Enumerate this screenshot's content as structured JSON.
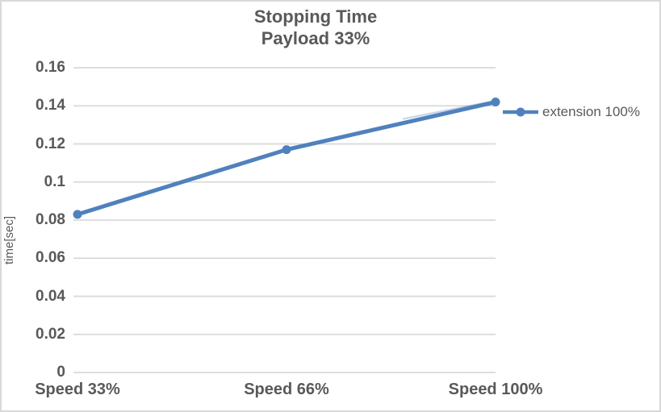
{
  "chart": {
    "title_line1": "Stopping Time",
    "title_line2": "Payload 33%",
    "ylabel": "time[sec]",
    "legend_label": "extension 100%"
  },
  "chart_data": {
    "type": "line",
    "title": "Stopping Time",
    "subtitle": "Payload 33%",
    "xlabel": "",
    "ylabel": "time[sec]",
    "categories": [
      "Speed 33%",
      "Speed 66%",
      "Speed 100%"
    ],
    "series": [
      {
        "name": "extension 100%",
        "color": "#4F81BD",
        "values": [
          0.083,
          0.117,
          0.142
        ]
      }
    ],
    "ylim": [
      0,
      0.16
    ],
    "ytick_step": 0.02,
    "ytick_labels": [
      "0",
      "0.02",
      "0.04",
      "0.06",
      "0.08",
      "0.1",
      "0.12",
      "0.14",
      "0.16"
    ],
    "grid": true,
    "legend_position": "right",
    "marker": "circle",
    "colors": {
      "gridline": "#d9d9d9",
      "border": "#d9d9d9",
      "text": "#595959"
    }
  }
}
